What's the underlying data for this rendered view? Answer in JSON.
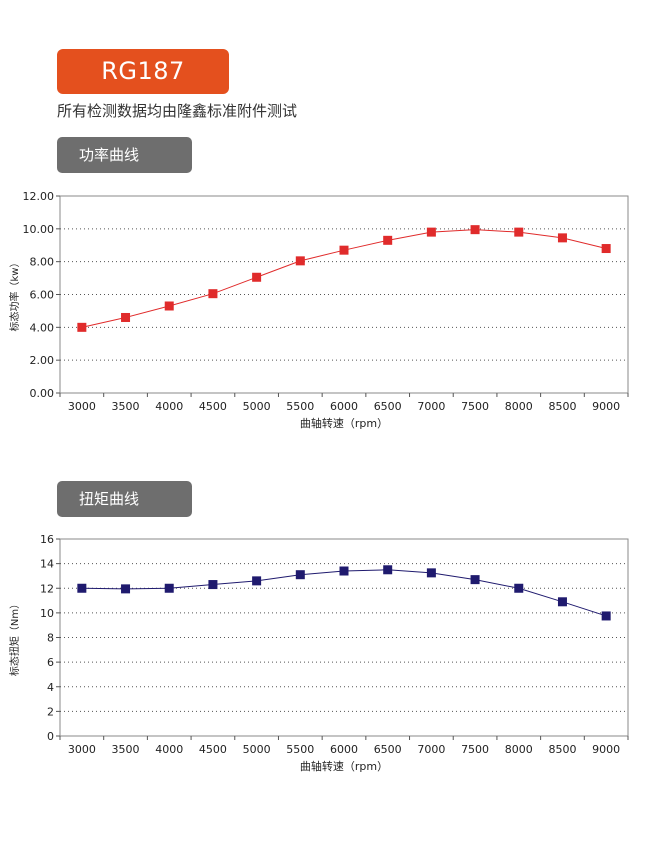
{
  "header": {
    "model": "RG187",
    "subtitle": "所有检测数据均由隆鑫标准附件测试"
  },
  "sections": {
    "power_tab": "功率曲线",
    "torque_tab": "扭矩曲线"
  },
  "colors": {
    "badge": "#e4501e",
    "tab": "#6e6e6e",
    "power_series": "#e02b2b",
    "torque_series": "#1f1a6e"
  },
  "chart_data": [
    {
      "type": "line",
      "title": "",
      "xlabel": "曲轴转速（rpm）",
      "ylabel": "标态功率（kw）",
      "x": [
        3000,
        3500,
        4000,
        4500,
        5000,
        5500,
        6000,
        6500,
        7000,
        7500,
        8000,
        8500,
        9000
      ],
      "x_tick_labels": [
        "3000",
        "3500",
        "4000",
        "4500",
        "5000",
        "5500",
        "6000",
        "6500",
        "7000",
        "7500",
        "8000",
        "8500",
        "9000"
      ],
      "y_tick_labels": [
        "0.00",
        "2.00",
        "4.00",
        "6.00",
        "8.00",
        "10.00",
        "12.00"
      ],
      "ylim": [
        0,
        12
      ],
      "grid": "horizontal-dotted",
      "series": [
        {
          "values": [
            4.0,
            4.6,
            5.3,
            6.05,
            7.05,
            8.05,
            8.7,
            9.3,
            9.8,
            9.95,
            9.8,
            9.45,
            8.8
          ]
        }
      ]
    },
    {
      "type": "line",
      "title": "",
      "xlabel": "曲轴转速（rpm）",
      "ylabel": "标态扭矩（Nm）",
      "x": [
        3000,
        3500,
        4000,
        4500,
        5000,
        5500,
        6000,
        6500,
        7000,
        7500,
        8000,
        8500,
        9000
      ],
      "x_tick_labels": [
        "3000",
        "3500",
        "4000",
        "4500",
        "5000",
        "5500",
        "6000",
        "6500",
        "7000",
        "7500",
        "8000",
        "8500",
        "9000"
      ],
      "y_tick_labels": [
        "0",
        "2",
        "4",
        "6",
        "8",
        "10",
        "12",
        "14",
        "16"
      ],
      "ylim": [
        0,
        16
      ],
      "grid": "horizontal-dotted",
      "series": [
        {
          "values": [
            12.0,
            11.95,
            12.0,
            12.3,
            12.6,
            13.1,
            13.4,
            13.5,
            13.25,
            12.7,
            12.0,
            10.9,
            9.75
          ]
        }
      ]
    }
  ]
}
